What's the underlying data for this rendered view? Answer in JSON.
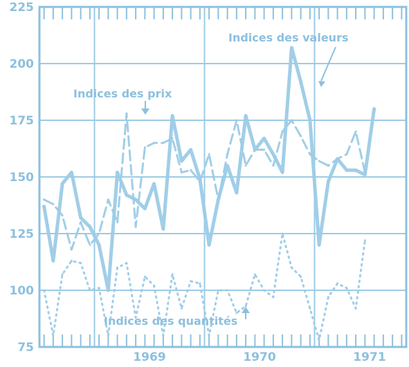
{
  "colors": {
    "ink": "#9ccbe6",
    "ink_dark": "#8cc0df",
    "background": "#ffffff"
  },
  "chart_data": {
    "type": "line",
    "title": "",
    "xlabel": "",
    "ylabel": "",
    "ylim": [
      75,
      225
    ],
    "y_ticks": [
      75,
      100,
      125,
      150,
      175,
      200,
      225
    ],
    "x_tick_labels": [
      "1969",
      "1970",
      "1971"
    ],
    "x_range_months": [
      "1968-07",
      "1971-10"
    ],
    "grid": true,
    "legend": "none",
    "annotations": [
      {
        "text": "Indices des valeurs",
        "series": "valeurs"
      },
      {
        "text": "Indices des prix",
        "series": "prix"
      },
      {
        "text": "Indices des quantités",
        "series": "quantites"
      }
    ],
    "series": [
      {
        "name": "Indices des valeurs",
        "style": "solid",
        "months": [
          "1968-07",
          "1968-08",
          "1968-09",
          "1968-10",
          "1968-11",
          "1968-12",
          "1969-01",
          "1969-02",
          "1969-03",
          "1969-04",
          "1969-05",
          "1969-06",
          "1969-07",
          "1969-08",
          "1969-09",
          "1969-10",
          "1969-11",
          "1969-12",
          "1970-01",
          "1970-02",
          "1970-03",
          "1970-04",
          "1970-05",
          "1970-06",
          "1970-07",
          "1970-08",
          "1970-09",
          "1970-10",
          "1970-11",
          "1970-12",
          "1971-01",
          "1971-02",
          "1971-03",
          "1971-04",
          "1971-05",
          "1971-06",
          "1971-07",
          "1971-08",
          "1971-09",
          "1971-10"
        ],
        "values": [
          137,
          113,
          147,
          152,
          132,
          128,
          120,
          100,
          152,
          142,
          140,
          136,
          147,
          127,
          177,
          157,
          162,
          149,
          120,
          140,
          155,
          143,
          177,
          162,
          167,
          160,
          152,
          207,
          192,
          175,
          120,
          148,
          158,
          153,
          153,
          151,
          180,
          null,
          null,
          null
        ]
      },
      {
        "name": "Indices des prix",
        "style": "dashed",
        "months": [
          "1968-07",
          "1968-08",
          "1968-09",
          "1968-10",
          "1968-11",
          "1968-12",
          "1969-01",
          "1969-02",
          "1969-03",
          "1969-04",
          "1969-05",
          "1969-06",
          "1969-07",
          "1969-08",
          "1969-09",
          "1969-10",
          "1969-11",
          "1969-12",
          "1970-01",
          "1970-02",
          "1970-03",
          "1970-04",
          "1970-05",
          "1970-06",
          "1970-07",
          "1970-08",
          "1970-09",
          "1970-10",
          "1970-11",
          "1970-12",
          "1971-01",
          "1971-02",
          "1971-03",
          "1971-04",
          "1971-05",
          "1971-06",
          "1971-07",
          "1971-08",
          "1971-09",
          "1971-10"
        ],
        "values": [
          140,
          138,
          133,
          118,
          130,
          120,
          125,
          140,
          130,
          178,
          128,
          163,
          165,
          165,
          167,
          152,
          153,
          148,
          160,
          140,
          160,
          175,
          155,
          162,
          162,
          155,
          170,
          175,
          168,
          160,
          157,
          155,
          158,
          160,
          170,
          152,
          null,
          null,
          null,
          null
        ]
      },
      {
        "name": "Indices des quantités",
        "style": "dotted",
        "months": [
          "1968-07",
          "1968-08",
          "1968-09",
          "1968-10",
          "1968-11",
          "1968-12",
          "1969-01",
          "1969-02",
          "1969-03",
          "1969-04",
          "1969-05",
          "1969-06",
          "1969-07",
          "1969-08",
          "1969-09",
          "1969-10",
          "1969-11",
          "1969-12",
          "1970-01",
          "1970-02",
          "1970-03",
          "1970-04",
          "1970-05",
          "1970-06",
          "1970-07",
          "1970-08",
          "1970-09",
          "1970-10",
          "1970-11",
          "1970-12",
          "1971-01",
          "1971-02",
          "1971-03",
          "1971-04",
          "1971-05",
          "1971-06",
          "1971-07",
          "1971-08",
          "1971-09",
          "1971-10"
        ],
        "values": [
          100,
          80,
          107,
          113,
          112,
          100,
          101,
          80,
          110,
          112,
          88,
          106,
          102,
          80,
          107,
          92,
          104,
          103,
          80,
          100,
          100,
          90,
          93,
          107,
          100,
          97,
          125,
          110,
          106,
          92,
          78,
          97,
          103,
          101,
          92,
          122,
          null,
          null,
          null,
          null
        ]
      }
    ]
  }
}
